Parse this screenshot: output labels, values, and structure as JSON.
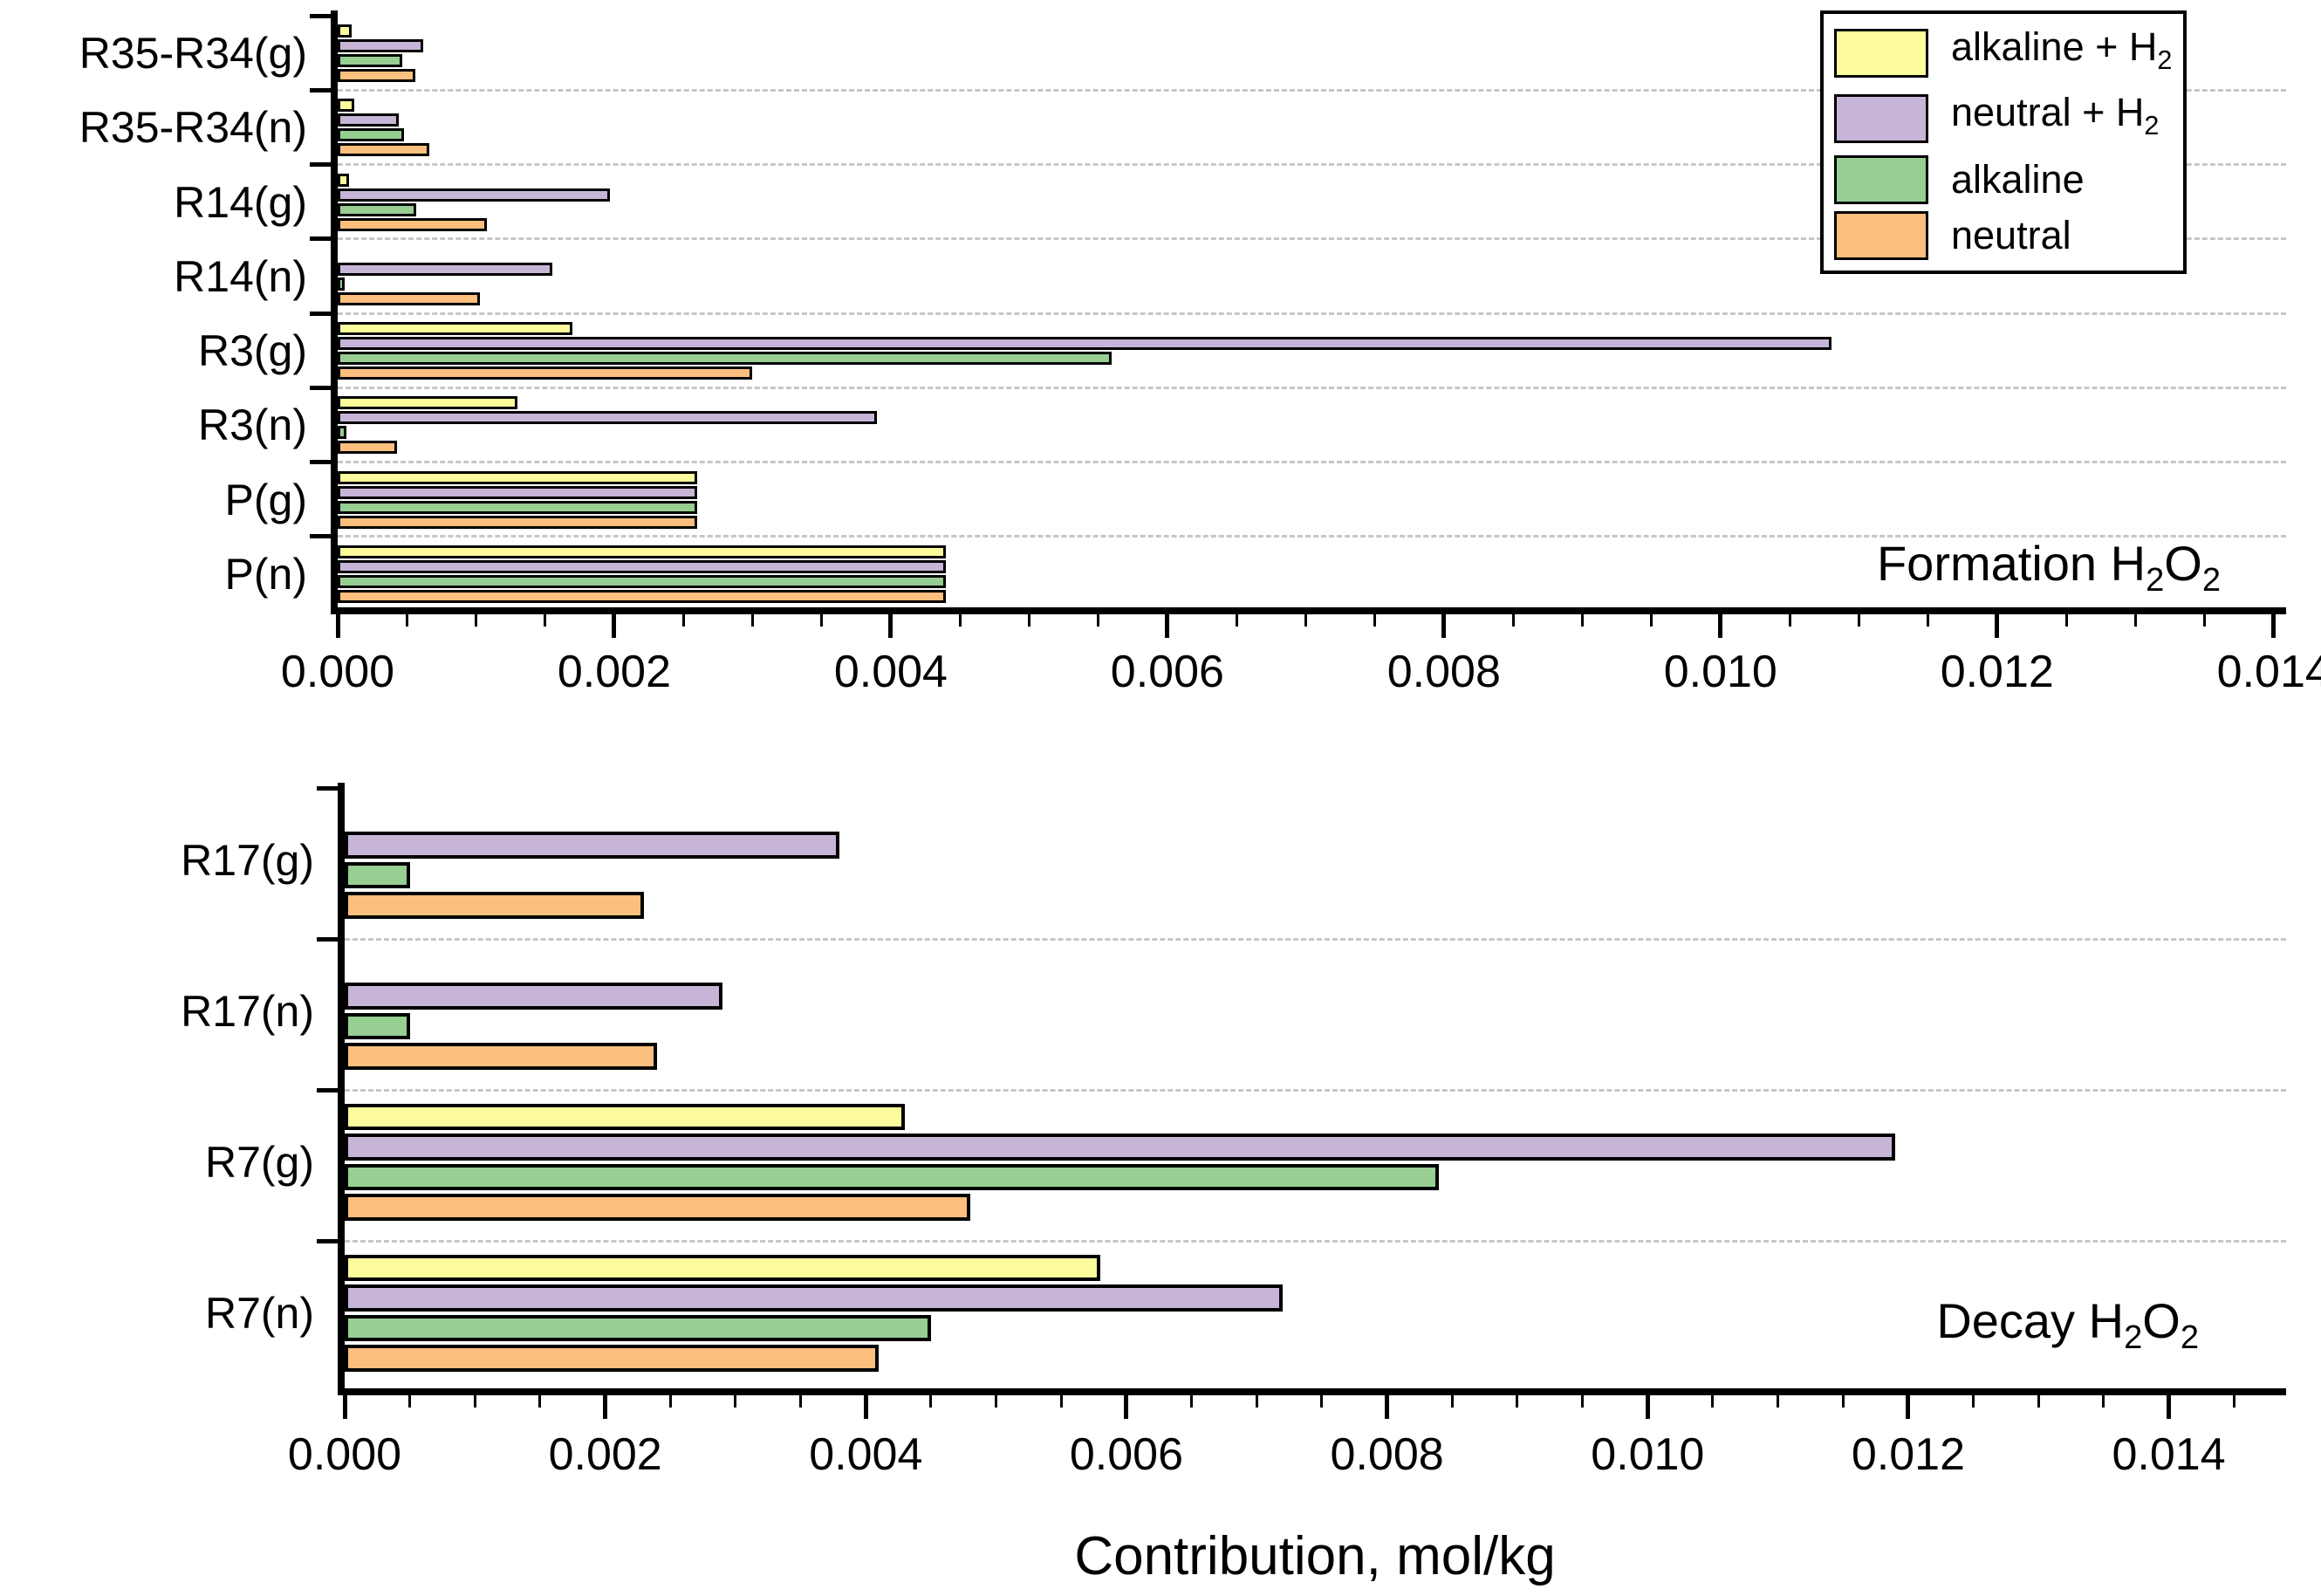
{
  "figure": {
    "xlabel": "Contribution, mol/kg"
  },
  "legend": {
    "position": "top-right of Formation chart",
    "items": [
      {
        "label": "alkaline + H2",
        "label_rich": [
          {
            "t": "alkaline + H"
          },
          {
            "t": "2",
            "sub": true
          }
        ],
        "color": "#fcfc9c"
      },
      {
        "label": "neutral + H2",
        "label_rich": [
          {
            "t": "neutral + H"
          },
          {
            "t": "2",
            "sub": true
          }
        ],
        "color": "#c7b5d7"
      },
      {
        "label": "alkaline",
        "label_rich": [
          {
            "t": "alkaline"
          }
        ],
        "color": "#97ce92"
      },
      {
        "label": "neutral",
        "label_rich": [
          {
            "t": "neutral"
          }
        ],
        "color": "#fcbf7e"
      }
    ]
  },
  "chart_data": [
    {
      "type": "bar",
      "orientation": "horizontal",
      "title": "Formation H2O2",
      "title_rich": [
        {
          "t": "Formation H"
        },
        {
          "t": "2",
          "sub": true
        },
        {
          "t": "O"
        },
        {
          "t": "2",
          "sub": true
        }
      ],
      "categories": [
        "R35-R34(g)",
        "R35-R34(n)",
        "R14(g)",
        "R14(n)",
        "R3(g)",
        "R3(n)",
        "P(g)",
        "P(n)"
      ],
      "series": [
        {
          "name": "alkaline + H2",
          "color": "#fcfc9c",
          "values": [
            0.0001,
            0.00012,
            8e-05,
            0,
            0.0017,
            0.0013,
            0.0026,
            0.0044
          ]
        },
        {
          "name": "neutral + H2",
          "color": "#c7b5d7",
          "values": [
            0.00062,
            0.00044,
            0.00197,
            0.00155,
            0.0108,
            0.0039,
            0.0026,
            0.0044
          ]
        },
        {
          "name": "alkaline",
          "color": "#97ce92",
          "values": [
            0.00047,
            0.00048,
            0.00057,
            5e-05,
            0.0056,
            6e-05,
            0.0026,
            0.0044
          ]
        },
        {
          "name": "neutral",
          "color": "#fcbf7e",
          "values": [
            0.00056,
            0.00066,
            0.00108,
            0.00103,
            0.003,
            0.00043,
            0.0026,
            0.0044
          ]
        }
      ],
      "xlim": [
        0,
        0.01409
      ],
      "xticks": [
        0,
        0.002,
        0.004,
        0.006,
        0.008,
        0.01,
        0.012,
        0.014
      ],
      "xtick_labels": [
        "0.000",
        "0.002",
        "0.004",
        "0.006",
        "0.008",
        "0.010",
        "0.012",
        "0.014"
      ],
      "minor_tick_step": 0.0005,
      "grid": "dashed horizontal lines at category-group boundaries",
      "xlabel": ""
    },
    {
      "type": "bar",
      "orientation": "horizontal",
      "title": "Decay H2O2",
      "title_rich": [
        {
          "t": "Decay H"
        },
        {
          "t": "2",
          "sub": true
        },
        {
          "t": "O"
        },
        {
          "t": "2",
          "sub": true
        }
      ],
      "categories": [
        "R17(g)",
        "R17(n)",
        "R7(g)",
        "R7(n)"
      ],
      "series": [
        {
          "name": "alkaline + H2",
          "color": "#fcfc9c",
          "values": [
            0,
            0,
            0.0043,
            0.0058
          ]
        },
        {
          "name": "neutral + H2",
          "color": "#c7b5d7",
          "values": [
            0.0038,
            0.0029,
            0.0119,
            0.0072
          ]
        },
        {
          "name": "alkaline",
          "color": "#97ce92",
          "values": [
            0.0005,
            0.0005,
            0.0084,
            0.0045
          ]
        },
        {
          "name": "neutral",
          "color": "#fcbf7e",
          "values": [
            0.0023,
            0.0024,
            0.0048,
            0.0041
          ]
        }
      ],
      "xlim": [
        0,
        0.0149
      ],
      "xticks": [
        0,
        0.002,
        0.004,
        0.006,
        0.008,
        0.01,
        0.012,
        0.014
      ],
      "xtick_labels": [
        "0.000",
        "0.002",
        "0.004",
        "0.006",
        "0.008",
        "0.010",
        "0.012",
        "0.014"
      ],
      "minor_tick_step": 0.0005,
      "grid": "dashed horizontal lines at category-group boundaries",
      "xlabel": "Contribution, mol/kg"
    }
  ]
}
